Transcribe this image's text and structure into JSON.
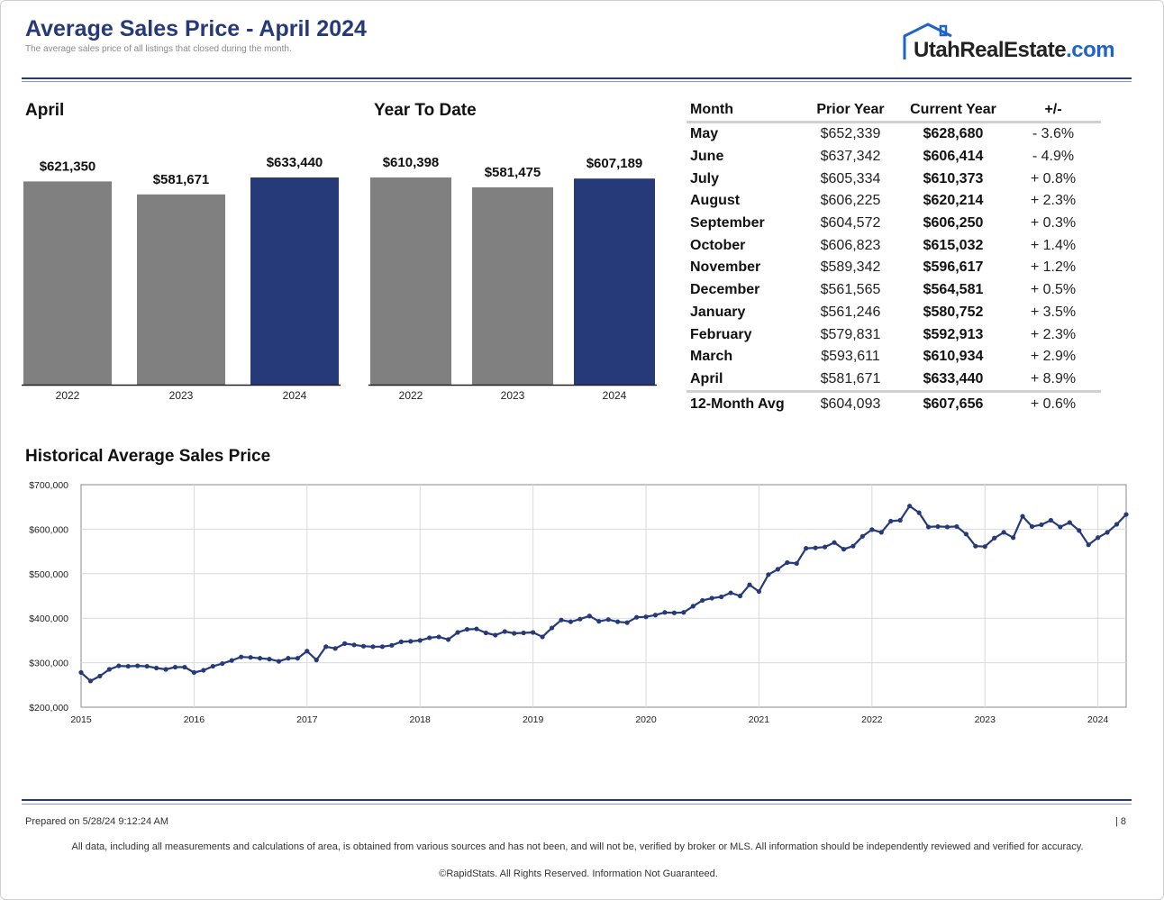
{
  "header": {
    "title": "Average Sales Price - April 2024",
    "subtitle": "The average sales price of all listings that closed during the month.",
    "logo_text": "UtahRealEstate",
    "logo_suffix": ".com"
  },
  "colors": {
    "gray": "#808080",
    "navy": "#263a7a",
    "line": "#263a7a"
  },
  "chart_data": [
    {
      "type": "bar",
      "title": "April",
      "categories": [
        "2022",
        "2023",
        "2024"
      ],
      "values": [
        621350,
        581671,
        633440
      ],
      "labels": [
        "$621,350",
        "$581,671",
        "$633,440"
      ],
      "ylim": [
        0,
        633440
      ]
    },
    {
      "type": "bar",
      "title": "Year To Date",
      "categories": [
        "2022",
        "2023",
        "2024"
      ],
      "values": [
        610398,
        581475,
        607189
      ],
      "labels": [
        "$610,398",
        "$581,475",
        "$607,189"
      ],
      "ylim": [
        0,
        610398
      ]
    },
    {
      "type": "table",
      "columns": [
        "Month",
        "Prior Year",
        "Current Year",
        "+/-"
      ],
      "rows": [
        [
          "May",
          "$652,339",
          "$628,680",
          "- 3.6%"
        ],
        [
          "June",
          "$637,342",
          "$606,414",
          "- 4.9%"
        ],
        [
          "July",
          "$605,334",
          "$610,373",
          "+ 0.8%"
        ],
        [
          "August",
          "$606,225",
          "$620,214",
          "+ 2.3%"
        ],
        [
          "September",
          "$604,572",
          "$606,250",
          "+ 0.3%"
        ],
        [
          "October",
          "$606,823",
          "$615,032",
          "+ 1.4%"
        ],
        [
          "November",
          "$589,342",
          "$596,617",
          "+ 1.2%"
        ],
        [
          "December",
          "$561,565",
          "$564,581",
          "+ 0.5%"
        ],
        [
          "January",
          "$561,246",
          "$580,752",
          "+ 3.5%"
        ],
        [
          "February",
          "$579,831",
          "$592,913",
          "+ 2.3%"
        ],
        [
          "March",
          "$593,611",
          "$610,934",
          "+ 2.9%"
        ],
        [
          "April",
          "$581,671",
          "$633,440",
          "+ 8.9%"
        ]
      ],
      "summary": [
        "12-Month Avg",
        "$604,093",
        "$607,656",
        "+ 0.6%"
      ]
    },
    {
      "type": "line",
      "title": "Historical Average Sales Price",
      "series": [
        {
          "name": "Average Sales Price",
          "start": "2015-01",
          "values": [
            278000,
            259000,
            270000,
            285000,
            293000,
            292000,
            293000,
            292000,
            288000,
            285000,
            290000,
            290000,
            278000,
            283000,
            292000,
            298000,
            305000,
            313000,
            312000,
            310000,
            308000,
            303000,
            310000,
            310000,
            326000,
            306000,
            336000,
            332000,
            343000,
            340000,
            337000,
            336000,
            336000,
            339000,
            347000,
            348000,
            350000,
            356000,
            358000,
            352000,
            368000,
            375000,
            376000,
            367000,
            362000,
            370000,
            366000,
            367000,
            368000,
            358000,
            378000,
            396000,
            392000,
            398000,
            405000,
            393000,
            397000,
            392000,
            390000,
            402000,
            403000,
            407000,
            413000,
            412000,
            413000,
            427000,
            440000,
            445000,
            448000,
            457000,
            450000,
            475000,
            460000,
            498000,
            510000,
            525000,
            523000,
            557000,
            558000,
            560000,
            570000,
            555000,
            562000,
            584000,
            599000,
            593000,
            618000,
            620000,
            652000,
            637000,
            605000,
            606000,
            605000,
            606000,
            589000,
            562000,
            561000,
            580000,
            593000,
            581000,
            629000,
            606000,
            610000,
            620000,
            605000,
            615000,
            597000,
            565000,
            581000,
            593000,
            611000,
            633000
          ]
        }
      ],
      "xticks": [
        "2015",
        "2016",
        "2017",
        "2018",
        "2019",
        "2020",
        "2021",
        "2022",
        "2023",
        "2024"
      ],
      "yticks": [
        "$200,000",
        "$300,000",
        "$400,000",
        "$500,000",
        "$600,000",
        "$700,000"
      ],
      "ylim": [
        200000,
        700000
      ]
    }
  ],
  "footer": {
    "prepared": "Prepared on 5/28/24 9:12:24 AM",
    "page": "| 8",
    "disclaimer": "All data, including all measurements and calculations of area, is obtained from various sources and has not been, and will not be, verified by broker or MLS. All information should be independently reviewed and verified for accuracy.",
    "copyright": "©RapidStats. All Rights Reserved. Information Not Guaranteed."
  }
}
